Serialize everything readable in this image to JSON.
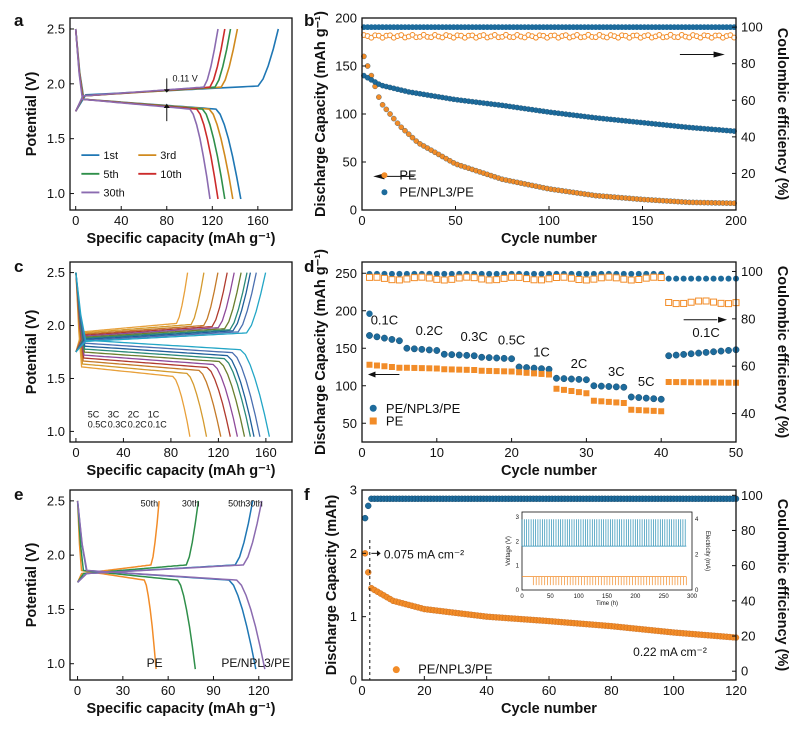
{
  "colors": {
    "orange": "#f28c28",
    "blue": "#1d6b9c",
    "cap_cycles": [
      "#ff8c1a",
      "#d08a1e",
      "#e0821c",
      "#c86a1a",
      "#a87b2d",
      "#8a7a2d",
      "#2f8f4a",
      "#cc2b2b",
      "#8b6bb0",
      "#1f77b4"
    ],
    "rate": [
      "#e8a03a",
      "#d49a2e",
      "#c47a28",
      "#b03a2e",
      "#8e4a9a",
      "#6a7f2e",
      "#2a8a78",
      "#1f5f9a",
      "#4a6fb0",
      "#23a6c6"
    ]
  },
  "chart_data": [
    {
      "panel": "a",
      "type": "line",
      "xlabel": "Specific capacity (mAh g⁻¹)",
      "ylabel": "Potential (V)",
      "xlim": [
        -5,
        190
      ],
      "ylim": [
        0.85,
        2.6
      ],
      "xticks": [
        "0",
        "40",
        "80",
        "120",
        "160"
      ],
      "yticks": [
        "1.0",
        "1.5",
        "2.0",
        "2.5"
      ],
      "annotation": "0.11 V",
      "series": [
        {
          "name": "1st",
          "color": "#1f77b4",
          "discharge_end": 145,
          "charge_end": 178,
          "plateau_d": 1.83,
          "plateau_c": 1.93
        },
        {
          "name": "3rd",
          "color": "#d08a1e",
          "discharge_end": 138,
          "charge_end": 142,
          "plateau_d": 1.83,
          "plateau_c": 1.92
        },
        {
          "name": "5th",
          "color": "#2f8f4a",
          "discharge_end": 131,
          "charge_end": 136,
          "plateau_d": 1.83,
          "plateau_c": 1.92
        },
        {
          "name": "10th",
          "color": "#cc2b2b",
          "discharge_end": 125,
          "charge_end": 131,
          "plateau_d": 1.83,
          "plateau_c": 1.92
        },
        {
          "name": "30th",
          "color": "#8b6bb0",
          "discharge_end": 118,
          "charge_end": 125,
          "plateau_d": 1.83,
          "plateau_c": 1.92
        }
      ]
    },
    {
      "panel": "b",
      "type": "scatter",
      "xlabel": "Cycle number",
      "ylabel": "Discharge Capacity (mAh g⁻¹)",
      "y2label": "Coulombic efficiency (%)",
      "xlim": [
        0,
        200
      ],
      "ylim": [
        0,
        200
      ],
      "y2lim": [
        0,
        105
      ],
      "xticks": [
        0,
        50,
        100,
        150,
        200
      ],
      "yticks": [
        0,
        50,
        100,
        150,
        200
      ],
      "y2ticks": [
        20,
        40,
        60,
        80,
        100
      ],
      "series": [
        {
          "name": "PE",
          "color": "#f28c28",
          "capacity_points": [
            [
              1,
              160
            ],
            [
              5,
              140
            ],
            [
              10,
              112
            ],
            [
              20,
              88
            ],
            [
              30,
              70
            ],
            [
              50,
              48
            ],
            [
              75,
              32
            ],
            [
              100,
              22
            ],
            [
              125,
              15
            ],
            [
              150,
              11
            ],
            [
              175,
              8
            ],
            [
              200,
              7
            ]
          ],
          "ce": 95
        },
        {
          "name": "PE/NPL3/PE",
          "color": "#1d6b9c",
          "capacity_points": [
            [
              1,
              140
            ],
            [
              10,
              130
            ],
            [
              25,
              123
            ],
            [
              50,
              115
            ],
            [
              75,
              109
            ],
            [
              100,
              102
            ],
            [
              125,
              96
            ],
            [
              150,
              91
            ],
            [
              175,
              86
            ],
            [
              200,
              82
            ]
          ],
          "ce": 100
        }
      ]
    },
    {
      "panel": "c",
      "type": "line",
      "xlabel": "Specific capacity (mAh g⁻¹)",
      "ylabel": "Potential (V)",
      "xlim": [
        -5,
        182
      ],
      "ylim": [
        0.9,
        2.6
      ],
      "xticks": [
        "0",
        "40",
        "80",
        "120",
        "160"
      ],
      "yticks": [
        "1.0",
        "1.5",
        "2.0",
        "2.5"
      ],
      "legend_rows": [
        [
          "5C",
          "3C",
          "2C",
          "1C"
        ],
        [
          "0.5C",
          "0.3C",
          "0.2C",
          "0.1C"
        ]
      ],
      "capacities": [
        96,
        110,
        122,
        130,
        136,
        142,
        147,
        150,
        155,
        163
      ]
    },
    {
      "panel": "d",
      "type": "scatter",
      "xlabel": "Cycle number",
      "ylabel": "Discharge Capacity (mAh g⁻¹)",
      "y2label": "Coulombic efficiency (%)",
      "xlim": [
        0,
        50
      ],
      "ylim": [
        25,
        265
      ],
      "y2lim": [
        28,
        104
      ],
      "xticks": [
        0,
        10,
        20,
        30,
        40,
        50
      ],
      "yticks": [
        50,
        100,
        150,
        200,
        250
      ],
      "y2ticks": [
        40,
        60,
        80,
        100
      ],
      "rate_labels": [
        "0.1C",
        "0.2C",
        "0.3C",
        "0.5C",
        "1C",
        "2C",
        "3C",
        "5C",
        "0.1C"
      ],
      "segments": [
        {
          "rate": "0.1C",
          "start": 1,
          "end": 5,
          "npl": [
            167,
            160
          ],
          "pe": [
            128,
            124
          ]
        },
        {
          "rate": "0.2C",
          "start": 6,
          "end": 10,
          "npl": [
            150,
            147
          ],
          "pe": [
            124,
            123
          ]
        },
        {
          "rate": "0.3C",
          "start": 11,
          "end": 15,
          "npl": [
            142,
            140
          ],
          "pe": [
            122,
            121
          ]
        },
        {
          "rate": "0.5C",
          "start": 16,
          "end": 20,
          "npl": [
            138,
            136
          ],
          "pe": [
            120,
            119
          ]
        },
        {
          "rate": "1C",
          "start": 21,
          "end": 25,
          "npl": [
            125,
            122
          ],
          "pe": [
            118,
            115
          ]
        },
        {
          "rate": "2C",
          "start": 26,
          "end": 30,
          "npl": [
            110,
            108
          ],
          "pe": [
            96,
            90
          ]
        },
        {
          "rate": "3C",
          "start": 31,
          "end": 35,
          "npl": [
            100,
            98
          ],
          "pe": [
            80,
            77
          ]
        },
        {
          "rate": "5C",
          "start": 36,
          "end": 40,
          "npl": [
            85,
            82
          ],
          "pe": [
            68,
            66
          ]
        },
        {
          "rate": "0.1C",
          "start": 41,
          "end": 50,
          "npl": [
            140,
            148
          ],
          "pe": [
            105,
            104
          ]
        }
      ],
      "series": [
        {
          "name": "PE/NPL3/PE",
          "color": "#1d6b9c"
        },
        {
          "name": "PE",
          "color": "#f28c28"
        }
      ]
    },
    {
      "panel": "e",
      "type": "line",
      "xlabel": "Specific capacity (mAh g⁻¹)",
      "ylabel": "Potential (V)",
      "xlim": [
        -5,
        142
      ],
      "ylim": [
        0.85,
        2.6
      ],
      "xticks": [
        "0",
        "30",
        "60",
        "90",
        "120"
      ],
      "yticks": [
        "1.0",
        "1.5",
        "2.0",
        "2.5"
      ],
      "groups": [
        {
          "label": "PE",
          "curves": [
            {
              "cycle": "50th",
              "color": "#f28c28",
              "discharge_end": 52,
              "charge_end": 54
            },
            {
              "cycle": "30th",
              "color": "#2f8f4a",
              "discharge_end": 78,
              "charge_end": 80
            }
          ]
        },
        {
          "label": "PE/NPL3/PE",
          "curves": [
            {
              "cycle": "50th",
              "color": "#1f77b4",
              "discharge_end": 118,
              "charge_end": 116
            },
            {
              "cycle": "30th",
              "color": "#8b6bb0",
              "discharge_end": 124,
              "charge_end": 122
            }
          ]
        }
      ]
    },
    {
      "panel": "f",
      "type": "scatter",
      "xlabel": "Cycle number",
      "ylabel": "Discharge Capacity (mAh)",
      "y2label": "Coulombic efficiency (%)",
      "xlim": [
        0,
        120
      ],
      "ylim": [
        0,
        3
      ],
      "y2lim": [
        -5,
        103
      ],
      "xticks": [
        0,
        20,
        40,
        60,
        80,
        100,
        120
      ],
      "yticks": [
        0,
        1,
        2,
        3
      ],
      "y2ticks": [
        0,
        20,
        40,
        60,
        80,
        100
      ],
      "annotations": [
        "0.075 mA cm⁻²",
        "0.22 mA cm⁻²"
      ],
      "series": [
        {
          "name": "PE/NPL3/PE",
          "color": "#f28c28",
          "capacity_points": [
            [
              1,
              2.0
            ],
            [
              2,
              1.7
            ],
            [
              3,
              1.45
            ],
            [
              10,
              1.25
            ],
            [
              20,
              1.12
            ],
            [
              40,
              1.0
            ],
            [
              60,
              0.93
            ],
            [
              80,
              0.85
            ],
            [
              100,
              0.75
            ],
            [
              120,
              0.67
            ]
          ],
          "ce": 98
        }
      ],
      "inset": {
        "xlabel": "Time (h)",
        "ylabel": "Voltage (V)",
        "y2label": "Electricity (mA)",
        "xticks": [
          0,
          50,
          100,
          150,
          200,
          250,
          300
        ],
        "yticks": [
          0,
          1,
          2,
          3
        ],
        "y2ticks": [
          0,
          2,
          4
        ]
      }
    }
  ]
}
